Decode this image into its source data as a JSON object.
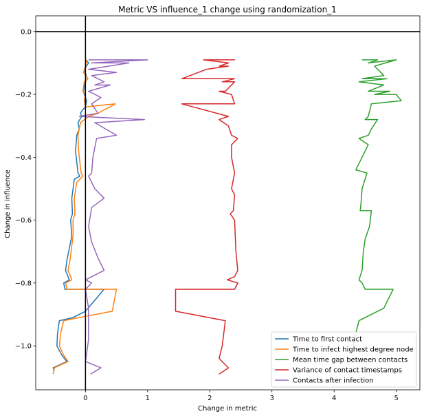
{
  "chart_data": {
    "type": "line",
    "title": "Metric VS influence_1 change using randomization_1",
    "xlabel": "Change in metric",
    "ylabel": "Change in influence",
    "xlim": [
      -0.8,
      5.38
    ],
    "ylim": [
      -1.14,
      0.05
    ],
    "xticks": [
      0,
      1,
      2,
      3,
      4,
      5
    ],
    "yticks": [
      0.0,
      -0.2,
      -0.4,
      -0.6,
      -0.8,
      -1.0
    ],
    "xtick_labels": [
      "0",
      "1",
      "2",
      "3",
      "4",
      "5"
    ],
    "ytick_labels": [
      "0.0",
      "−0.2",
      "−0.4",
      "−0.6",
      "−0.8",
      "−1.0"
    ],
    "hlines": [
      0.0
    ],
    "vlines": [
      0.0
    ],
    "grid": false,
    "legend_position": "bottom-right",
    "series": [
      {
        "name": "Time to first contact",
        "color": "#1f77b4",
        "points": [
          [
            0.01,
            -0.09
          ],
          [
            0.05,
            -0.1
          ],
          [
            -0.02,
            -0.12
          ],
          [
            0.03,
            -0.15
          ],
          [
            0.0,
            -0.16
          ],
          [
            -0.03,
            -0.19
          ],
          [
            -0.02,
            -0.2
          ],
          [
            0.02,
            -0.22
          ],
          [
            0.0,
            -0.24
          ],
          [
            -0.05,
            -0.25
          ],
          [
            -0.08,
            -0.26
          ],
          [
            -0.06,
            -0.27
          ],
          [
            -0.12,
            -0.29
          ],
          [
            -0.1,
            -0.31
          ],
          [
            -0.14,
            -0.33
          ],
          [
            -0.16,
            -0.38
          ],
          [
            -0.12,
            -0.45
          ],
          [
            -0.09,
            -0.46
          ],
          [
            -0.18,
            -0.47
          ],
          [
            -0.22,
            -0.53
          ],
          [
            -0.21,
            -0.58
          ],
          [
            -0.24,
            -0.6
          ],
          [
            -0.22,
            -0.65
          ],
          [
            -0.3,
            -0.73
          ],
          [
            -0.32,
            -0.76
          ],
          [
            -0.26,
            -0.79
          ],
          [
            -0.35,
            -0.8
          ],
          [
            -0.33,
            -0.82
          ],
          [
            0.3,
            -0.82
          ],
          [
            0.0,
            -0.89
          ],
          [
            -0.2,
            -0.91
          ],
          [
            -0.42,
            -0.92
          ],
          [
            -0.45,
            -0.96
          ],
          [
            -0.46,
            -1.0
          ],
          [
            -0.38,
            -1.03
          ],
          [
            -0.3,
            -1.05
          ],
          [
            -0.52,
            -1.07
          ],
          [
            -0.5,
            -1.08
          ]
        ]
      },
      {
        "name": "Time to infect highest degree node",
        "color": "#ff7f0e",
        "points": [
          [
            0.02,
            -0.09
          ],
          [
            0.0,
            -0.11
          ],
          [
            -0.03,
            -0.13
          ],
          [
            0.04,
            -0.15
          ],
          [
            -0.02,
            -0.16
          ],
          [
            -0.04,
            -0.19
          ],
          [
            0.0,
            -0.2
          ],
          [
            -0.02,
            -0.22
          ],
          [
            0.0,
            -0.24
          ],
          [
            0.48,
            -0.23
          ],
          [
            0.2,
            -0.26
          ],
          [
            0.05,
            -0.27
          ],
          [
            -0.08,
            -0.29
          ],
          [
            -0.1,
            -0.31
          ],
          [
            -0.12,
            -0.33
          ],
          [
            -0.11,
            -0.38
          ],
          [
            -0.07,
            -0.45
          ],
          [
            -0.04,
            -0.46
          ],
          [
            -0.14,
            -0.48
          ],
          [
            -0.18,
            -0.53
          ],
          [
            -0.17,
            -0.58
          ],
          [
            -0.2,
            -0.6
          ],
          [
            -0.2,
            -0.65
          ],
          [
            -0.25,
            -0.73
          ],
          [
            -0.28,
            -0.76
          ],
          [
            -0.22,
            -0.79
          ],
          [
            -0.32,
            -0.8
          ],
          [
            -0.3,
            -0.82
          ],
          [
            0.5,
            -0.82
          ],
          [
            0.43,
            -0.89
          ],
          [
            -0.1,
            -0.91
          ],
          [
            -0.35,
            -0.92
          ],
          [
            -0.4,
            -0.96
          ],
          [
            -0.42,
            -1.0
          ],
          [
            -0.35,
            -1.03
          ],
          [
            -0.28,
            -1.05
          ],
          [
            -0.5,
            -1.07
          ],
          [
            -0.52,
            -1.09
          ]
        ]
      },
      {
        "name": "Mean time gap between contacts",
        "color": "#2ca02c",
        "points": [
          [
            4.45,
            -0.09
          ],
          [
            4.7,
            -0.09
          ],
          [
            4.55,
            -0.1
          ],
          [
            5.0,
            -0.09
          ],
          [
            4.65,
            -0.11
          ],
          [
            4.8,
            -0.14
          ],
          [
            4.45,
            -0.15
          ],
          [
            4.85,
            -0.15
          ],
          [
            4.4,
            -0.16
          ],
          [
            4.8,
            -0.17
          ],
          [
            4.55,
            -0.19
          ],
          [
            4.9,
            -0.19
          ],
          [
            4.65,
            -0.2
          ],
          [
            5.0,
            -0.2
          ],
          [
            5.08,
            -0.22
          ],
          [
            4.6,
            -0.23
          ],
          [
            4.55,
            -0.27
          ],
          [
            4.5,
            -0.28
          ],
          [
            4.7,
            -0.28
          ],
          [
            4.6,
            -0.31
          ],
          [
            4.55,
            -0.33
          ],
          [
            4.4,
            -0.34
          ],
          [
            4.55,
            -0.36
          ],
          [
            4.45,
            -0.4
          ],
          [
            4.35,
            -0.44
          ],
          [
            4.53,
            -0.45
          ],
          [
            4.45,
            -0.5
          ],
          [
            4.44,
            -0.53
          ],
          [
            4.42,
            -0.57
          ],
          [
            4.6,
            -0.57
          ],
          [
            4.57,
            -0.62
          ],
          [
            4.5,
            -0.66
          ],
          [
            4.47,
            -0.7
          ],
          [
            4.45,
            -0.76
          ],
          [
            4.4,
            -0.79
          ],
          [
            4.45,
            -0.8
          ],
          [
            4.5,
            -0.82
          ],
          [
            4.95,
            -0.82
          ],
          [
            4.8,
            -0.88
          ],
          [
            4.4,
            -0.92
          ],
          [
            4.3,
            -1.0
          ]
        ]
      },
      {
        "name": "Variance of contact timestamps",
        "color": "#d62728",
        "points": [
          [
            2.1,
            -0.09
          ],
          [
            2.4,
            -0.09
          ],
          [
            1.9,
            -0.09
          ],
          [
            2.3,
            -0.1
          ],
          [
            2.15,
            -0.11
          ],
          [
            2.3,
            -0.11
          ],
          [
            1.95,
            -0.12
          ],
          [
            1.55,
            -0.15
          ],
          [
            2.4,
            -0.15
          ],
          [
            2.2,
            -0.16
          ],
          [
            2.4,
            -0.16
          ],
          [
            2.25,
            -0.19
          ],
          [
            2.15,
            -0.19
          ],
          [
            2.35,
            -0.2
          ],
          [
            2.4,
            -0.23
          ],
          [
            1.55,
            -0.23
          ],
          [
            2.3,
            -0.27
          ],
          [
            2.15,
            -0.28
          ],
          [
            2.3,
            -0.3
          ],
          [
            2.35,
            -0.33
          ],
          [
            2.45,
            -0.34
          ],
          [
            2.35,
            -0.36
          ],
          [
            2.35,
            -0.4
          ],
          [
            2.4,
            -0.45
          ],
          [
            2.35,
            -0.5
          ],
          [
            2.4,
            -0.52
          ],
          [
            2.38,
            -0.57
          ],
          [
            2.33,
            -0.58
          ],
          [
            2.4,
            -0.6
          ],
          [
            2.42,
            -0.7
          ],
          [
            2.45,
            -0.76
          ],
          [
            2.4,
            -0.78
          ],
          [
            2.28,
            -0.79
          ],
          [
            2.45,
            -0.8
          ],
          [
            2.4,
            -0.82
          ],
          [
            1.45,
            -0.82
          ],
          [
            1.45,
            -0.89
          ],
          [
            2.25,
            -0.92
          ],
          [
            2.2,
            -1.0
          ],
          [
            2.15,
            -1.04
          ],
          [
            2.3,
            -1.07
          ],
          [
            2.15,
            -1.09
          ]
        ]
      },
      {
        "name": "Contacts after infection",
        "color": "#9467bd",
        "points": [
          [
            0.05,
            -0.09
          ],
          [
            1.0,
            -0.09
          ],
          [
            0.1,
            -0.1
          ],
          [
            0.7,
            -0.1
          ],
          [
            0.05,
            -0.12
          ],
          [
            0.5,
            -0.13
          ],
          [
            0.1,
            -0.14
          ],
          [
            0.3,
            -0.16
          ],
          [
            0.15,
            -0.17
          ],
          [
            0.4,
            -0.17
          ],
          [
            0.05,
            -0.19
          ],
          [
            0.25,
            -0.21
          ],
          [
            0.1,
            -0.23
          ],
          [
            0.2,
            -0.26
          ],
          [
            -0.1,
            -0.27
          ],
          [
            0.95,
            -0.28
          ],
          [
            0.15,
            -0.29
          ],
          [
            0.5,
            -0.33
          ],
          [
            0.18,
            -0.34
          ],
          [
            0.12,
            -0.4
          ],
          [
            0.1,
            -0.45
          ],
          [
            0.05,
            -0.46
          ],
          [
            0.15,
            -0.5
          ],
          [
            0.3,
            -0.53
          ],
          [
            0.1,
            -0.56
          ],
          [
            0.05,
            -0.62
          ],
          [
            0.1,
            -0.67
          ],
          [
            0.2,
            -0.72
          ],
          [
            0.3,
            -0.76
          ],
          [
            0.0,
            -0.79
          ],
          [
            0.1,
            -0.8
          ],
          [
            0.0,
            -0.82
          ],
          [
            0.05,
            -0.88
          ],
          [
            0.05,
            -0.98
          ],
          [
            0.0,
            -1.05
          ],
          [
            0.25,
            -1.07
          ],
          [
            0.08,
            -1.09
          ]
        ]
      }
    ]
  }
}
